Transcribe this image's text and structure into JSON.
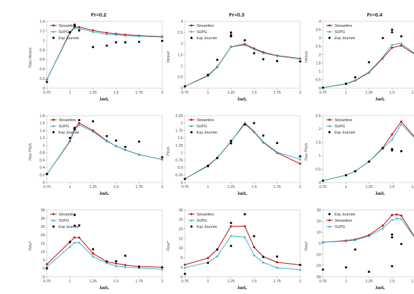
{
  "page": {
    "background": "#ffffff"
  },
  "colors": {
    "streamline": "#c00000",
    "supg": "#34b2ca",
    "exp": "#000000",
    "axis_line": "#c9c9c9",
    "tick": "#9a9a9a",
    "text": "#3f3f3f"
  },
  "styles": {
    "streamline": {
      "type": "line",
      "color": "#c00000",
      "marker": "diamond"
    },
    "supg": {
      "type": "line",
      "color": "#34b2ca",
      "marker": "triangle"
    },
    "exp": {
      "type": "scatter",
      "color": "#000000"
    }
  },
  "x_ticks": [
    0.75,
    1,
    1.25,
    1.5,
    1.75,
    2
  ],
  "x_range": [
    0.75,
    2
  ],
  "chart_data": [
    {
      "type": "line",
      "title": "Fr=0.2",
      "ylabel": "Rao Heave",
      "xlabel": "λw/L",
      "ylim": [
        0,
        1.4
      ],
      "ystep": 0.2,
      "grid": false,
      "legend_position": "top-left",
      "series": [
        {
          "label": "Streamline",
          "style": "streamline",
          "x": [
            0.75,
            1,
            1.05,
            1.1,
            1.25,
            1.4,
            1.5,
            1.6,
            1.75,
            2
          ],
          "y": [
            0.18,
            1.17,
            1.28,
            1.28,
            1.21,
            1.16,
            1.14,
            1.12,
            1.1,
            1.08
          ]
        },
        {
          "label": "SUPG",
          "style": "supg",
          "x": [
            0.75,
            1,
            1.05,
            1.1,
            1.25,
            1.4,
            1.5,
            1.6,
            1.75,
            2
          ],
          "y": [
            0.18,
            1.15,
            1.26,
            1.25,
            1.18,
            1.13,
            1.12,
            1.1,
            1.09,
            1.07
          ]
        },
        {
          "label": "Exp Journée",
          "style": "exp",
          "x": [
            0.75,
            1,
            1.05,
            1.05,
            1.1,
            1.25,
            1.4,
            1.5,
            1.6,
            1.75,
            2
          ],
          "y": [
            0.13,
            1.17,
            1.3,
            1.33,
            1.21,
            0.86,
            0.89,
            0.96,
            0.96,
            0.97,
            0.99
          ]
        }
      ]
    },
    {
      "type": "line",
      "title": "Fr=0.3",
      "ylabel": "Heave",
      "xlabel": "λw/L",
      "ylim": [
        0,
        3
      ],
      "ystep": 0.5,
      "grid": false,
      "legend_position": "top-left",
      "series": [
        {
          "label": "Streamline",
          "style": "streamline",
          "x": [
            0.75,
            1,
            1.1,
            1.25,
            1.4,
            1.5,
            1.6,
            1.75,
            2
          ],
          "y": [
            0.08,
            0.57,
            0.95,
            1.86,
            1.98,
            1.78,
            1.61,
            1.46,
            1.33
          ]
        },
        {
          "label": "SUPG",
          "style": "supg",
          "x": [
            0.75,
            1,
            1.1,
            1.25,
            1.4,
            1.5,
            1.6,
            1.75,
            2
          ],
          "y": [
            0.08,
            0.54,
            0.93,
            1.85,
            1.94,
            1.74,
            1.57,
            1.44,
            1.31
          ]
        },
        {
          "label": "Exp Journée",
          "style": "exp",
          "x": [
            0.75,
            1,
            1.1,
            1.25,
            1.25,
            1.25,
            1.4,
            1.5,
            1.6,
            1.75,
            2
          ],
          "y": [
            0.08,
            0.6,
            1.27,
            2.33,
            2.38,
            2.5,
            2.15,
            1.57,
            1.3,
            1.22,
            1.2
          ]
        }
      ]
    },
    {
      "type": "line",
      "title": "Fr=0.4",
      "ylabel": "Heave",
      "xlabel": "λw/L",
      "ylim": [
        0,
        4
      ],
      "ystep": 0.5,
      "grid": false,
      "legend_position": "top-left",
      "series": [
        {
          "label": "Streamline",
          "style": "streamline",
          "x": [
            0.75,
            1,
            1.1,
            1.25,
            1.4,
            1.5,
            1.6,
            1.75,
            2
          ],
          "y": [
            0.03,
            0.25,
            0.45,
            0.93,
            1.8,
            2.42,
            2.55,
            2.02,
            1.65
          ]
        },
        {
          "label": "SUPG",
          "style": "supg",
          "x": [
            0.75,
            1,
            1.1,
            1.25,
            1.4,
            1.5,
            1.6,
            1.75,
            2
          ],
          "y": [
            0.03,
            0.27,
            0.48,
            0.97,
            1.85,
            2.6,
            2.68,
            2.05,
            2.35
          ]
        },
        {
          "label": "Exp Journée",
          "style": "exp",
          "x": [
            0.75,
            1,
            1.1,
            1.25,
            1.4,
            1.5,
            1.5,
            1.6,
            1.75,
            2
          ],
          "y": [
            0.03,
            0.27,
            0.65,
            1.55,
            3.0,
            3.5,
            3.35,
            3.1,
            2.5,
            1.55
          ]
        }
      ]
    },
    {
      "type": "line",
      "title": "",
      "ylabel": "Rao Pitch",
      "xlabel": "λw/L",
      "ylim": [
        0,
        1.8
      ],
      "ystep": 0.2,
      "grid": false,
      "legend_position": "top-left",
      "series": [
        {
          "label": "Streamline",
          "style": "streamline",
          "x": [
            0.75,
            1,
            1.05,
            1.1,
            1.25,
            1.4,
            1.5,
            1.6,
            1.75,
            2
          ],
          "y": [
            0.22,
            1.12,
            1.45,
            1.6,
            1.4,
            1.12,
            0.98,
            0.88,
            0.75,
            0.62
          ]
        },
        {
          "label": "SUPG",
          "style": "supg",
          "x": [
            0.75,
            1,
            1.05,
            1.1,
            1.25,
            1.4,
            1.5,
            1.6,
            1.75,
            2
          ],
          "y": [
            0.22,
            1.1,
            1.42,
            1.55,
            1.37,
            1.11,
            0.98,
            0.88,
            0.75,
            0.62
          ]
        },
        {
          "label": "Exp Journée",
          "style": "exp",
          "x": [
            0.75,
            1,
            1.05,
            1.05,
            1.1,
            1.25,
            1.4,
            1.5,
            1.6,
            1.75,
            2
          ],
          "y": [
            0.23,
            1.2,
            1.43,
            1.47,
            1.68,
            1.65,
            1.25,
            1.13,
            0.96,
            1.1,
            0.68
          ]
        }
      ]
    },
    {
      "type": "line",
      "title": "",
      "ylabel": "Pitch",
      "xlabel": "λw/L",
      "ylim": [
        0,
        2.25
      ],
      "ystep": 0.25,
      "grid": false,
      "legend_position": "top-left",
      "series": [
        {
          "label": "Streamline",
          "style": "streamline",
          "x": [
            0.75,
            1,
            1.1,
            1.25,
            1.4,
            1.5,
            1.6,
            1.75,
            2
          ],
          "y": [
            0.12,
            0.57,
            0.83,
            1.38,
            1.98,
            1.7,
            1.35,
            1.0,
            0.63
          ]
        },
        {
          "label": "SUPG",
          "style": "supg",
          "x": [
            0.75,
            1,
            1.1,
            1.25,
            1.4,
            1.5,
            1.6,
            1.75,
            2
          ],
          "y": [
            0.12,
            0.55,
            0.82,
            1.37,
            2.02,
            1.72,
            1.37,
            1.02,
            0.78
          ]
        },
        {
          "label": "Exp Journée",
          "style": "exp",
          "x": [
            0.75,
            1,
            1.1,
            1.25,
            1.25,
            1.4,
            1.5,
            1.6,
            1.75,
            2
          ],
          "y": [
            0.12,
            0.55,
            0.82,
            1.32,
            1.4,
            1.95,
            2.0,
            1.58,
            1.33,
            0.88
          ]
        }
      ]
    },
    {
      "type": "line",
      "title": "",
      "ylabel": "Rao Pitch",
      "xlabel": "λw/L",
      "ylim": [
        0,
        2.5
      ],
      "ystep": 0.5,
      "grid": false,
      "legend_position": "top-left",
      "series": [
        {
          "label": "Streamline",
          "style": "streamline",
          "x": [
            0.75,
            1,
            1.1,
            1.25,
            1.4,
            1.5,
            1.6,
            1.75,
            2
          ],
          "y": [
            0.07,
            0.27,
            0.42,
            0.78,
            1.3,
            1.8,
            2.28,
            1.68,
            0.98
          ]
        },
        {
          "label": "SUPG",
          "style": "supg",
          "x": [
            0.75,
            1,
            1.1,
            1.25,
            1.4,
            1.5,
            1.6,
            1.75,
            2
          ],
          "y": [
            0.07,
            0.27,
            0.42,
            0.78,
            1.27,
            1.6,
            2.18,
            1.65,
            0.97
          ]
        },
        {
          "label": "Exp Journée",
          "style": "exp",
          "x": [
            0.75,
            1,
            1.1,
            1.25,
            1.4,
            1.5,
            1.5,
            1.6,
            1.75,
            2
          ],
          "y": [
            0.07,
            0.27,
            0.42,
            0.78,
            1.28,
            1.25,
            1.2,
            1.17,
            1.35,
            1.33
          ]
        }
      ]
    },
    {
      "type": "line",
      "title": "",
      "ylabel": "Raw*",
      "xlabel": "λw/L",
      "ylim": [
        -5,
        35
      ],
      "ystep": 5,
      "grid": false,
      "legend_position": "top-left",
      "series": [
        {
          "label": "Streamline",
          "style": "streamline",
          "x": [
            0.75,
            1,
            1.05,
            1.1,
            1.25,
            1.4,
            1.5,
            1.6,
            1.75,
            2
          ],
          "y": [
            2.5,
            16,
            18.5,
            18.5,
            9,
            4,
            3,
            2,
            1.2,
            0.7
          ]
        },
        {
          "label": "SUPG",
          "style": "supg",
          "x": [
            0.75,
            1,
            1.05,
            1.1,
            1.25,
            1.4,
            1.5,
            1.6,
            1.75,
            2
          ],
          "y": [
            1,
            13,
            15.5,
            15.5,
            7.2,
            3.2,
            1.5,
            0.8,
            0.3,
            -0.5
          ]
        },
        {
          "label": "Exp Journée",
          "style": "exp",
          "x": [
            0.75,
            1,
            1.05,
            1.05,
            1.1,
            1.25,
            1.4,
            1.5,
            1.6,
            1.75,
            2
          ],
          "y": [
            0,
            15.8,
            32,
            25.6,
            25.8,
            11.5,
            4.2,
            4.3,
            7.6,
            1.0,
            0.6
          ]
        }
      ]
    },
    {
      "type": "line",
      "title": "",
      "ylabel": "Raw*",
      "xlabel": "λw/L",
      "ylim": [
        -5,
        30
      ],
      "ystep": 5,
      "grid": false,
      "legend_position": "top-left",
      "series": [
        {
          "label": "Streamline",
          "style": "streamline",
          "x": [
            0.75,
            1,
            1.1,
            1.25,
            1.4,
            1.5,
            1.6,
            1.75,
            2
          ],
          "y": [
            1.3,
            4.8,
            9.3,
            21.5,
            21.5,
            10.5,
            5.5,
            2.6,
            1.2
          ]
        },
        {
          "label": "SUPG",
          "style": "supg",
          "x": [
            0.75,
            1,
            1.1,
            1.25,
            1.4,
            1.5,
            1.6,
            1.75,
            2
          ],
          "y": [
            -0.2,
            2.5,
            5.8,
            16.5,
            15.8,
            6.3,
            2.5,
            -0.2,
            -1.3
          ]
        },
        {
          "label": "Exp Journée",
          "style": "exp",
          "x": [
            0.75,
            1,
            1.1,
            1.25,
            1.25,
            1.4,
            1.5,
            1.6,
            1.75,
            2
          ],
          "y": [
            -3.5,
            2.3,
            9.3,
            23.2,
            11.2,
            27.8,
            16.3,
            5.4,
            5.6,
            1.2
          ]
        }
      ]
    },
    {
      "type": "line",
      "title": "",
      "ylabel": "Raw*",
      "xlabel": "λw/L",
      "ylim": [
        -30,
        30
      ],
      "ystep": 10,
      "grid": false,
      "legend_position": "top-left",
      "series": [
        {
          "label": "Exp Journée",
          "style": "exp",
          "x": [
            0.75,
            1,
            1.1,
            1.25,
            1.5,
            1.5,
            1.5,
            1.6,
            1.75,
            2
          ],
          "y": [
            -23.5,
            -21.5,
            -5.5,
            -25.5,
            8,
            5.5,
            -20.5,
            -0.5,
            3.5,
            -10
          ]
        },
        {
          "label": "Streamline",
          "style": "streamline",
          "x": [
            0.75,
            1,
            1.1,
            1.25,
            1.4,
            1.5,
            1.55,
            1.6,
            1.75,
            2
          ],
          "y": [
            1,
            2.5,
            3.5,
            7.5,
            16,
            25.5,
            26,
            25,
            5,
            1.5
          ]
        },
        {
          "label": "SUPG",
          "style": "supg",
          "x": [
            0.75,
            1,
            1.1,
            1.25,
            1.4,
            1.5,
            1.55,
            1.6,
            1.75,
            2
          ],
          "y": [
            1,
            2,
            3,
            6.5,
            13.5,
            21,
            22.5,
            22,
            4.5,
            0.5
          ]
        }
      ]
    }
  ]
}
